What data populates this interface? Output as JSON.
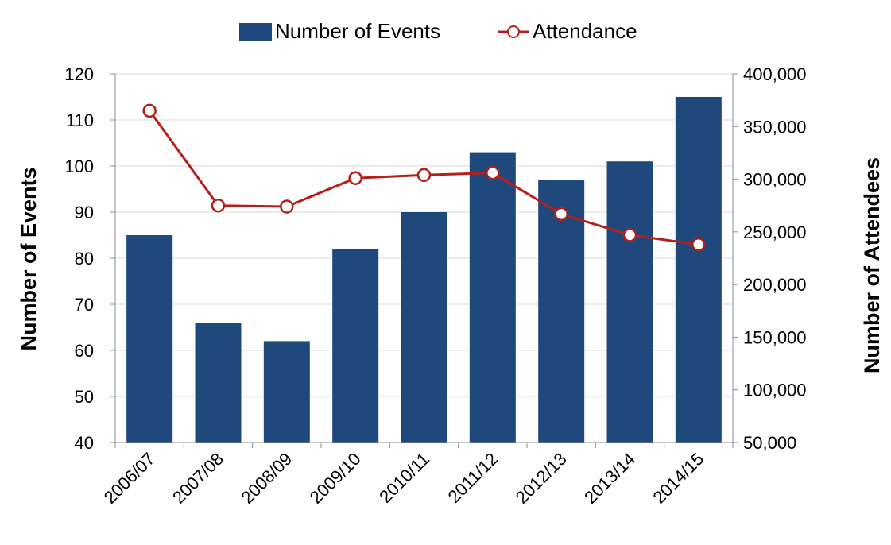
{
  "chart_data": {
    "type": "bar+line",
    "categories": [
      "2006/07",
      "2007/08",
      "2008/09",
      "2009/10",
      "2010/11",
      "2011/12",
      "2012/13",
      "2013/14",
      "2014/15"
    ],
    "series": [
      {
        "name": "Number of Events",
        "type": "bar",
        "axis": "left",
        "color": "#1f497d",
        "values": [
          85,
          66,
          62,
          82,
          90,
          103,
          97,
          101,
          115
        ]
      },
      {
        "name": "Attendance",
        "type": "line",
        "axis": "right",
        "color": "#b2201d",
        "values": [
          365000,
          275000,
          274000,
          301000,
          304000,
          306000,
          267000,
          247000,
          238000
        ]
      }
    ],
    "ylabel": "Number of Events",
    "y2label": "Number of Attendees",
    "ylim": [
      40,
      120
    ],
    "y2lim": [
      50000,
      400000
    ],
    "yticks": [
      "40",
      "50",
      "60",
      "70",
      "80",
      "90",
      "100",
      "110",
      "120"
    ],
    "y2ticks": [
      "50,000",
      "100,000",
      "150,000",
      "200,000",
      "250,000",
      "300,000",
      "350,000",
      "400,000"
    ],
    "grid": true,
    "legend": "top-center"
  }
}
